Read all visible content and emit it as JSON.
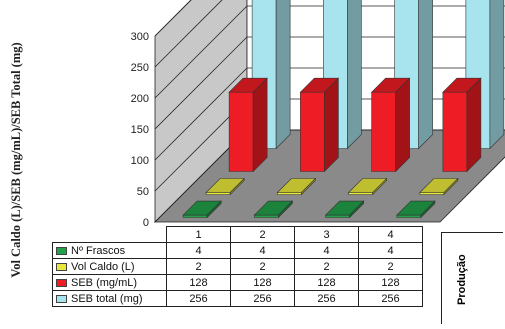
{
  "chart_data": {
    "type": "bar",
    "subtype": "3d-clustered-column",
    "categories": [
      "1",
      "2",
      "3",
      "4"
    ],
    "series": [
      {
        "name": "Nº Frascos",
        "values": [
          4,
          4,
          4,
          4
        ],
        "color": "#22a04a"
      },
      {
        "name": "Vol Caldo (L)",
        "values": [
          2,
          2,
          2,
          2
        ],
        "color": "#e8e83a"
      },
      {
        "name": "SEB (mg/mL)",
        "values": [
          128,
          128,
          128,
          128
        ],
        "color": "#ee1c24"
      },
      {
        "name": "SEB total (mg)",
        "values": [
          256,
          256,
          256,
          256
        ],
        "color": "#a8e4ee"
      }
    ],
    "ylabel": "Vol Caldo (L)/SEB (mg/mL)/SEB Total (mg)",
    "xlabel": "Produção",
    "ylim": [
      0,
      300
    ],
    "yticks": [
      "0",
      "50",
      "100",
      "150",
      "200",
      "250",
      "300"
    ],
    "grid": true,
    "legend": "data-table",
    "colors": {
      "wall": "#c8c8c8",
      "floor": "#8a8a8a",
      "gridline": "#222222"
    }
  }
}
